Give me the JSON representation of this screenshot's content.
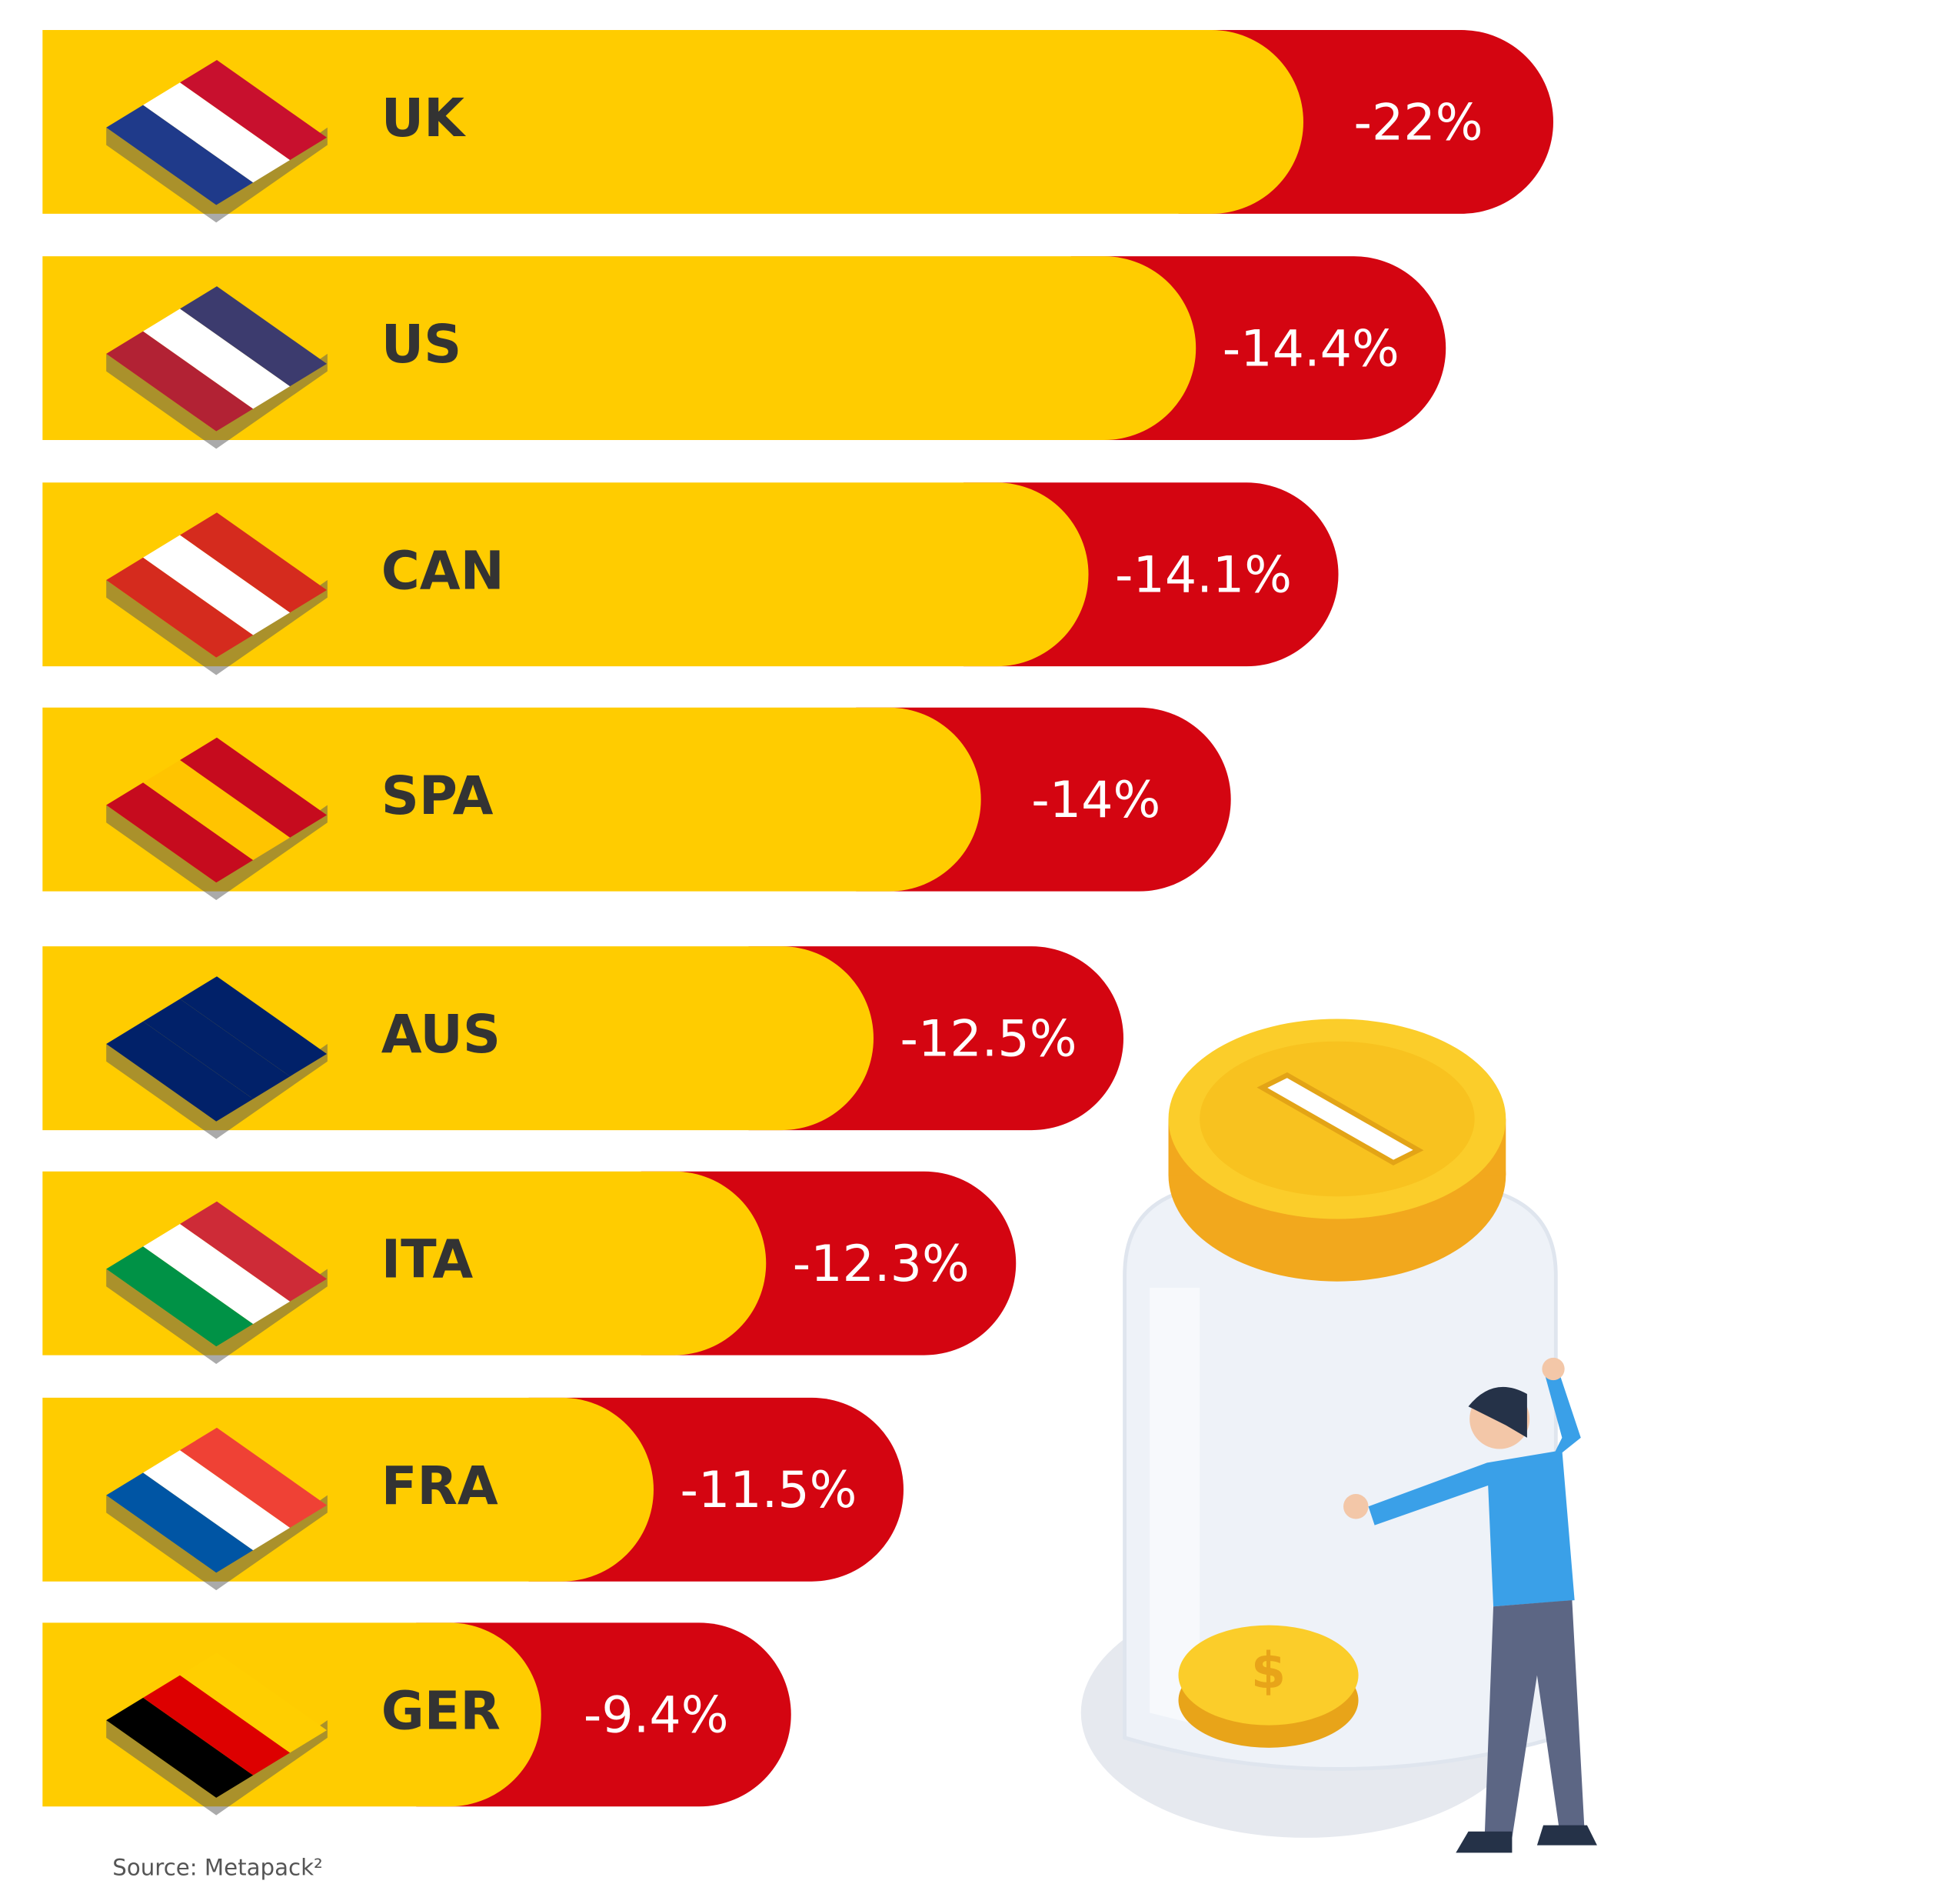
{
  "rows": [
    {
      "label": "UK",
      "value": "-22%"
    },
    {
      "label": "US",
      "value": "-14.4%"
    },
    {
      "label": "CAN",
      "value": "-14.1%"
    },
    {
      "label": "SPA",
      "value": "-14%"
    },
    {
      "label": "AUS",
      "value": "-12.5%"
    },
    {
      "label": "ITA",
      "value": "-12.3%"
    },
    {
      "label": "FRA",
      "value": "-11.5%"
    },
    {
      "label": "GER",
      "value": "-9.4%"
    }
  ],
  "source": "Source: Metapack²"
}
